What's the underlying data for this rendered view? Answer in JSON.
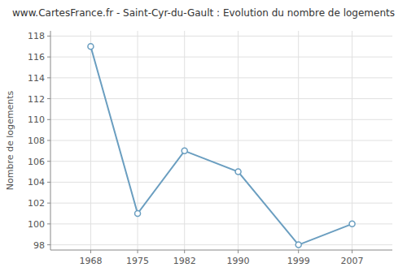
{
  "chart_data": {
    "type": "line",
    "title": "www.CartesFrance.fr - Saint-Cyr-du-Gault : Evolution du nombre de logements",
    "ylabel": "Nombre de logements",
    "x": [
      1968,
      1975,
      1982,
      1990,
      1999,
      2007
    ],
    "values": [
      117,
      101,
      107,
      105,
      98,
      100
    ],
    "xlim": [
      1962,
      2013
    ],
    "ylim": [
      97.5,
      118.5
    ],
    "xticks": [
      1968,
      1975,
      1982,
      1990,
      1999,
      2007
    ],
    "yticks": [
      98,
      100,
      102,
      104,
      106,
      108,
      110,
      112,
      114,
      116,
      118
    ],
    "color": "#6a9ec0",
    "marker": "circle",
    "grid": true
  }
}
